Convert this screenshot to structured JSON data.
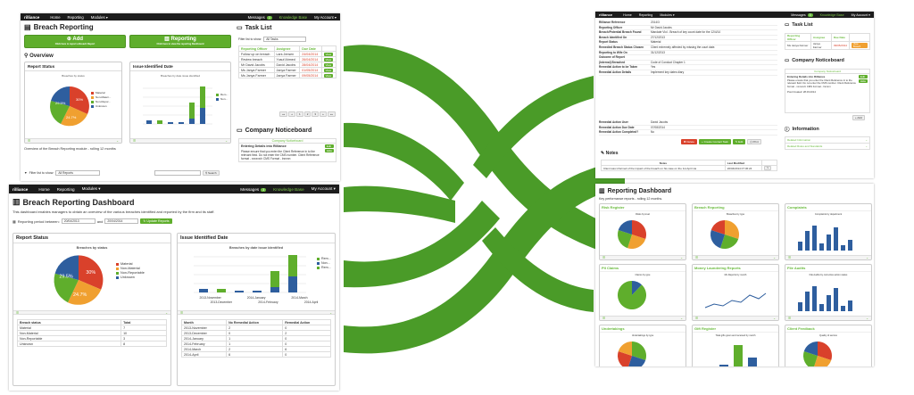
{
  "brand": "rilliance",
  "nav": {
    "home": "Home",
    "reporting": "Reporting",
    "modules": "Modules",
    "messages": "Messages",
    "messages_count": "3",
    "knowledge": "Knowledge Base",
    "account": "My Account"
  },
  "colors": {
    "green": "#67b93a",
    "red": "#d9412b",
    "orange": "#f0a030",
    "blue": "#2e5e9e",
    "darknavy": "#1c1c1c"
  },
  "s1": {
    "title": "Breach Reporting",
    "add_label": "Add",
    "add_sub": "Click here to report a Breach Report",
    "rep_label": "Reporting",
    "rep_sub": "Click here to view the reporting Dashboard",
    "overview": "Overview",
    "report_status": "Report Status",
    "issue_date": "Issue Identified Date",
    "chart1_title": "Breaches by status",
    "chart2_title": "Breaches by date issue identified",
    "pie_labels": [
      "29.5%",
      "30%",
      "24.7%"
    ],
    "legend1": [
      "Material",
      "Non-Materi...",
      "Non-Repor...",
      "Unknown"
    ],
    "legend2": [
      "Rem...",
      "Non...",
      "Rem..."
    ],
    "overview_text": "Overview of the Breach Reporting module - rolling 12 months",
    "filter_label": "Filter list to show:",
    "filter_value": "All Reports",
    "search_btn": "Search",
    "task_title": "Task List",
    "task_filter_label": "Filter list to show:",
    "task_filter_value": "All Tasks",
    "task_cols": [
      "Reporting Officer",
      "Assignee",
      "Due Date"
    ],
    "tasks": [
      {
        "a": "Follow up on breach",
        "b": "Lars Jensen",
        "c": "24/04/2014"
      },
      {
        "a": "Review breach",
        "b": "Yusuf Ahmed",
        "c": "26/04/2014"
      },
      {
        "a": "Mr David Jacobs",
        "b": "David Jacobs",
        "c": "28/04/2014"
      },
      {
        "a": "Ms Janya Farmer",
        "b": "Janya Farmer",
        "c": "01/05/2014"
      },
      {
        "a": "Ms Janya Farmer",
        "b": "Janya Farmer",
        "c": "09/05/2014"
      }
    ],
    "view": "View",
    "pager": [
      "««",
      "«",
      "1",
      "2",
      "3",
      "»",
      "»»"
    ],
    "notice_title": "Company Noticeboard",
    "notice_head": "Company Noticeboard",
    "notice_item": "Entering Details into Rilliance",
    "notice_text": "Please ensure that you enter the Client Reference in to the relevant field. Do not enter the CMS number. Client Reference format - xxxxxx/n CMS Format - lnnnnn",
    "edit": "Edit",
    "hide": "Hide"
  },
  "s2": {
    "title": "Breach Reporting Dashboard",
    "desc": "This dashboard enables managers to obtain an overview of the various breaches identified and reported by the firm and its staff.",
    "period_label": "Reporting period between:",
    "from": "20/04/2013",
    "and": "and",
    "to": "20/04/2014",
    "update": "Update Reports",
    "report_status": "Report Status",
    "issue_date": "Issue Identified Date",
    "chart1_title": "Breaches by status",
    "chart2_title": "Breaches by date issue identified",
    "pie_labels": [
      "29.5%",
      "30%",
      "24.7%"
    ],
    "legend1": [
      "Material",
      "Non-Material",
      "Non-Reportable",
      "Unknown"
    ],
    "legend2": [
      "Rem...",
      "Non...",
      "Rem..."
    ],
    "xlabels_top": [
      "2013-November",
      "2014-January",
      "2014-March"
    ],
    "xlabels_bot": [
      "2013-December",
      "2014-February",
      "2014-April"
    ],
    "t1_cols": [
      "Breach status",
      "Total"
    ],
    "t1": [
      [
        "Material",
        "7"
      ],
      [
        "Non-Material",
        "10"
      ],
      [
        "Non-Reportable",
        "3"
      ],
      [
        "Unknown",
        "8"
      ]
    ],
    "t2_cols": [
      "Month",
      "No Remedial Action",
      "Remedial Action"
    ],
    "t2": [
      [
        "2013-November",
        "2",
        "0"
      ],
      [
        "2013-December",
        "0",
        "2"
      ],
      [
        "2014-January",
        "1",
        "0"
      ],
      [
        "2014-February",
        "1",
        "0"
      ],
      [
        "2014-March",
        "2",
        "6"
      ],
      [
        "2014-April",
        "6",
        "0"
      ]
    ]
  },
  "s3": {
    "fields": [
      [
        "Rilliance Reference",
        "2014/3"
      ],
      [
        "Reporting Officer",
        "Mr David Jacobs"
      ],
      [
        "Breach/Potential Breach Found",
        "Mandate Viol - Breach of key count date for the 12/4/14"
      ],
      [
        "Breach Identified On",
        "27/12/2013"
      ],
      [
        "Report Status",
        "Material"
      ],
      [
        "Remedied Breach Status Chosen",
        "Client extremely affected by missing the court date."
      ],
      [
        "Reporting to Wife On",
        "31/12/2013"
      ],
      [
        "Outcome of Report",
        ""
      ],
      [
        "(Internal) Breached",
        "Code of Conduct Chapter 1"
      ],
      [
        "Remedial Action to be Taken",
        "Yes"
      ],
      [
        "Remedial Action Details",
        "Implement key dates diary"
      ]
    ],
    "fields2": [
      [
        "Remedial Action User",
        "David Jacobs"
      ],
      [
        "Remedial Action Due Date",
        "07/08/2014"
      ],
      [
        "Remedial Action Completed?",
        "No"
      ]
    ],
    "delete": "Delete",
    "create_task": "Create Contact Task",
    "edit": "Edit",
    "print": "Print",
    "notes": "Notes",
    "notes_cols": [
      "Notes",
      "Last Modified"
    ],
    "note_text": "Client was informed of the impact of the breach on his case on the 1st April via",
    "note_date": "20/04/2014 07:36:24",
    "task_title": "Task List",
    "task_cols": [
      "Reporting Officer",
      "Assignee",
      "Due Date"
    ],
    "task_row": [
      "Ms Janya Farmer",
      "Janya Farmer",
      "09/05/2014"
    ],
    "view_label": "View Breach",
    "notice_title": "Company Noticeboard",
    "notice_head": "Company Noticeboard",
    "notice_item": "Entering Details into Rilliance",
    "notice_text": "Please ensure that you enter the Client Reference in to the relevant field. Do not enter the CMS number. Client Reference format - xxxxxx/n CMS Format - lnnnnn",
    "posted": "Post Created: 28.03.2014",
    "add": "Add",
    "info_title": "Information",
    "info_items": [
      "Related Information",
      "Related Rules and Standards"
    ]
  },
  "s4": {
    "title": "Reporting Dashboard",
    "sub": "Key performance reports - rolling 12 months.",
    "panels": [
      "Risk Register",
      "Breach Reporting",
      "Complaints",
      "PII Claims",
      "Money Laundering Reports",
      "File Audits",
      "Undertakings",
      "Gift Register",
      "Client Feedback"
    ],
    "chart_titles": [
      "Risks by level",
      "Breaches by type",
      "Complaints by department",
      "Claims by type",
      "ML Reports by month",
      "File Audits by corrective action status",
      "Undertakings by type",
      "Total gifts given and received by month",
      "Quality of service"
    ]
  }
}
